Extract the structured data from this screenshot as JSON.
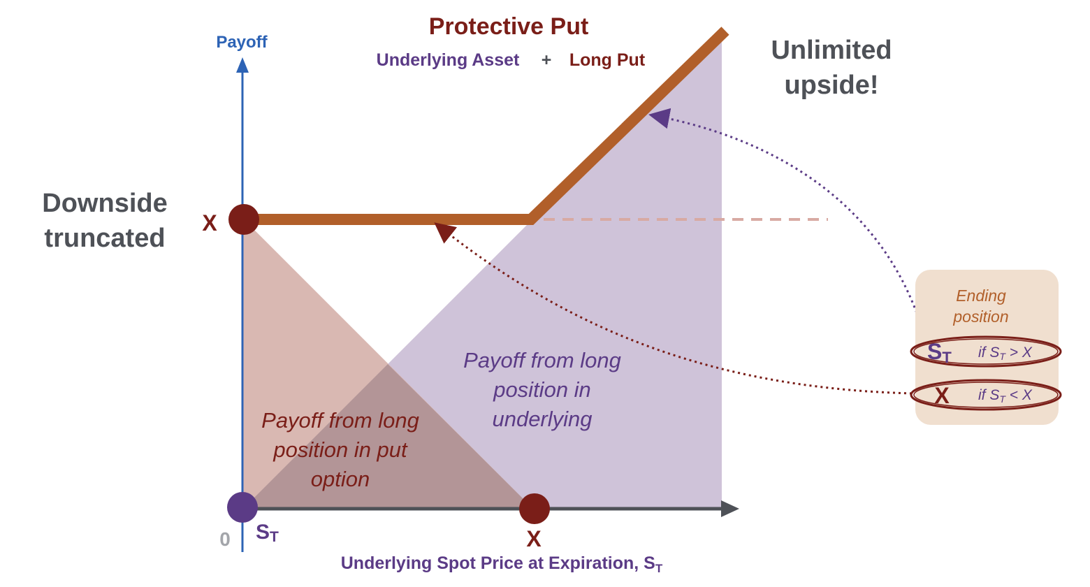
{
  "title": "Protective Put",
  "subtitle": {
    "left": "Underlying Asset",
    "plus": "+",
    "right": "Long Put"
  },
  "y_axis_label": "Payoff",
  "x_axis_label": {
    "text": "Underlying Spot Price at Expiration, S",
    "subscript": "T"
  },
  "origin_label": "0",
  "x_tick_label": "X",
  "y_tick_label": "X",
  "st_label": {
    "main": "S",
    "sub": "T"
  },
  "downside": {
    "line1": "Downside",
    "line2": "truncated"
  },
  "upside": {
    "line1": "Unlimited",
    "line2": "upside!"
  },
  "region_put": {
    "line1": "Payoff from long",
    "line2": "position in put",
    "line3": "option"
  },
  "region_underlying": {
    "line1": "Payoff from long",
    "line2": "position in",
    "line3": "underlying"
  },
  "ending_position": {
    "title_line1": "Ending",
    "title_line2": "position",
    "row1": {
      "label_main": "S",
      "label_sub": "T",
      "cond_pre": "if S",
      "cond_sub": "T",
      "cond_post": " > X"
    },
    "row2": {
      "label": "X",
      "cond_pre": "if S",
      "cond_sub": "T",
      "cond_post": " < X"
    }
  },
  "colors": {
    "axis_blue": "#2d63b5",
    "axis_gray": "#4e5157",
    "payoff_line": "#b15f2a",
    "dark_red": "#7a1e18",
    "purple": "#5b3b86",
    "purple_fill": "#cfc3d9",
    "red_fill": "#d9b8b2",
    "overlap_fill": "#b39597",
    "dashed": "#d8aaa3",
    "gray_text": "#4e5157",
    "box_fill": "#f0dfcf"
  }
}
